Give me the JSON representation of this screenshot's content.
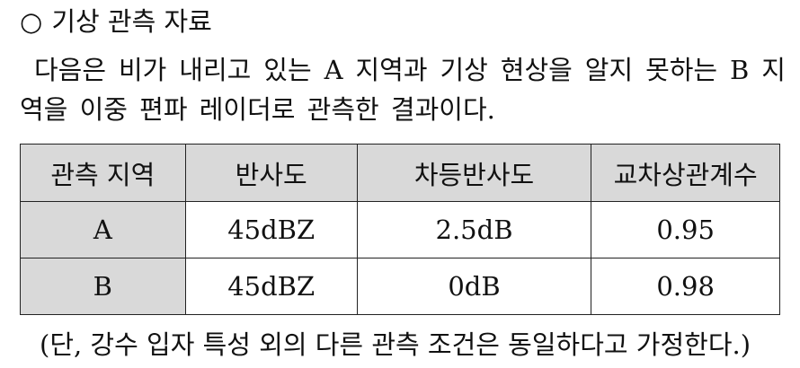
{
  "heading": {
    "bullet": "○",
    "title": "기상 관측 자료"
  },
  "paragraph": "다음은 비가 내리고 있는 A 지역과 기상 현상을 알지 못하는 B 지역을 이중 편파 레이더로 관측한 결과이다.",
  "table": {
    "headers": [
      "관측 지역",
      "반사도",
      "차등반사도",
      "교차상관계수"
    ],
    "rows": [
      [
        "A",
        "45dBZ",
        "2.5dB",
        "0.95"
      ],
      [
        "B",
        "45dBZ",
        "0dB",
        "0.98"
      ]
    ]
  },
  "note": "(단, 강수 입자 특성 외의 다른 관측 조건은 동일하다고 가정한다.)"
}
